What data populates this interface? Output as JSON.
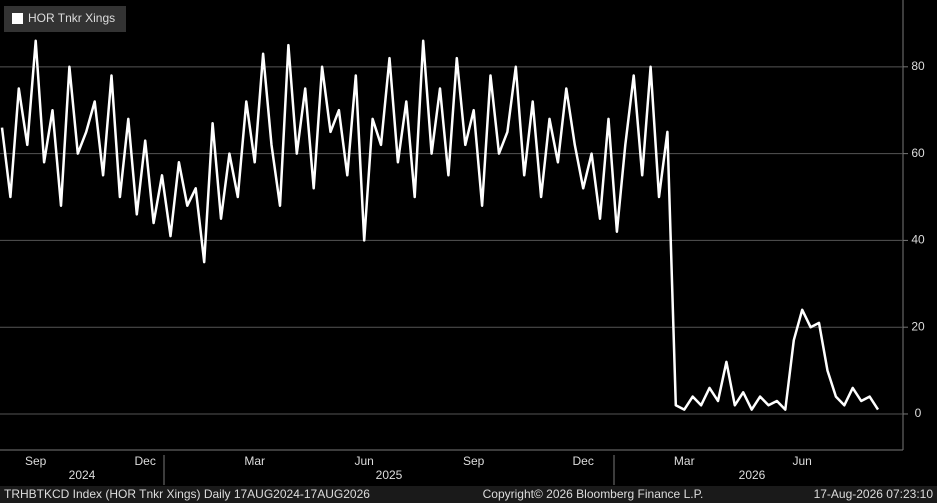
{
  "chart_data": {
    "type": "line",
    "categories": [
      null,
      null,
      null,
      null,
      "Sep",
      null,
      null,
      null,
      null,
      null,
      null,
      null,
      null,
      null,
      null,
      null,
      null,
      "Dec",
      null,
      null,
      null,
      null,
      null,
      null,
      null,
      null,
      null,
      null,
      null,
      null,
      "Mar",
      null,
      null,
      null,
      null,
      null,
      null,
      null,
      null,
      null,
      null,
      null,
      null,
      "Jun",
      null,
      null,
      null,
      null,
      null,
      null,
      null,
      null,
      null,
      null,
      null,
      null,
      "Sep",
      null,
      null,
      null,
      null,
      null,
      null,
      null,
      null,
      null,
      null,
      null,
      null,
      "Dec",
      null,
      null,
      null,
      null,
      null,
      null,
      null,
      null,
      null,
      null,
      null,
      "Mar",
      null,
      null,
      null,
      null,
      null,
      null,
      null,
      null,
      null,
      null,
      null,
      null,
      null,
      "Jun",
      null,
      null,
      null,
      null,
      null,
      null,
      null,
      null,
      null
    ],
    "year_labels": [
      "2024",
      "2025",
      "2026"
    ],
    "series": [
      {
        "name": "HOR Tnkr Xings",
        "color": "#ffffff",
        "values": [
          66,
          50,
          75,
          62,
          86,
          58,
          70,
          48,
          80,
          60,
          65,
          72,
          55,
          78,
          50,
          68,
          46,
          63,
          44,
          55,
          41,
          58,
          48,
          52,
          35,
          67,
          45,
          60,
          50,
          72,
          58,
          83,
          62,
          48,
          85,
          60,
          75,
          52,
          80,
          65,
          70,
          55,
          78,
          40,
          68,
          62,
          82,
          58,
          72,
          50,
          86,
          60,
          75,
          55,
          82,
          62,
          70,
          48,
          78,
          60,
          65,
          80,
          55,
          72,
          50,
          68,
          58,
          75,
          62,
          52,
          60,
          45,
          68,
          42,
          62,
          78,
          55,
          80,
          50,
          65,
          2,
          1,
          4,
          2,
          6,
          3,
          12,
          2,
          5,
          1,
          4,
          2,
          3,
          1,
          17,
          24,
          20,
          21,
          10,
          4,
          2,
          6,
          3,
          4,
          1
        ]
      }
    ],
    "ylim": [
      -8.3,
      95.4
    ],
    "yticks": [
      0,
      20,
      40,
      60,
      80
    ],
    "grid": true,
    "footer": {
      "left": "TRHBTKCD Index (HOR Tnkr Xings) Daily 17AUG2024-17AUG2026",
      "center": "Copyright© 2026 Bloomberg Finance L.P.",
      "right": "17-Aug-2026 07:23:10"
    }
  }
}
